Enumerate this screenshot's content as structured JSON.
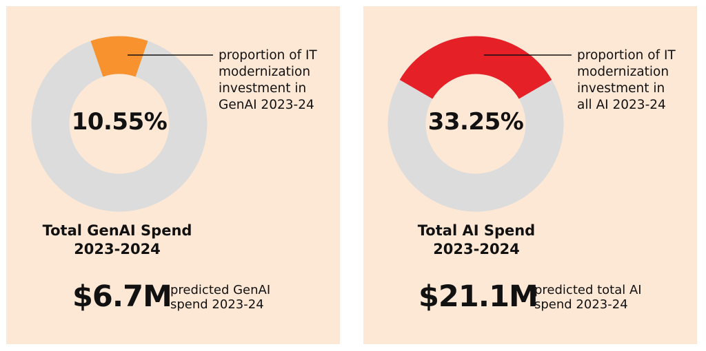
{
  "colors": {
    "background": "#fde8d6",
    "track": "#dcdcdc",
    "genai_accent": "#f7922e",
    "ai_accent": "#e52127",
    "text": "#111111"
  },
  "chart_data": [
    {
      "type": "pie",
      "variant": "donut",
      "values": [
        10.55,
        89.45
      ],
      "highlight_value": 10.55,
      "center_label": "10.55%",
      "callout": [
        "proportion of IT",
        "modernization",
        "investment in",
        "GenAI 2023-24"
      ],
      "highlight_color": "#f7922e",
      "track_color": "#dcdcdc"
    },
    {
      "type": "pie",
      "variant": "donut",
      "values": [
        33.25,
        66.75
      ],
      "highlight_value": 33.25,
      "center_label": "33.25%",
      "callout": [
        "proportion of IT",
        "modernization",
        "investment in",
        "all AI 2023-24"
      ],
      "highlight_color": "#e52127",
      "track_color": "#dcdcdc"
    }
  ],
  "panels": {
    "genai": {
      "title_line1": "Total GenAI Spend",
      "title_line2": "2023-2024",
      "amount": "$6.7M",
      "note_line1": "predicted GenAI",
      "note_line2": "spend 2023-24"
    },
    "ai": {
      "title_line1": "Total AI Spend",
      "title_line2": "2023-2024",
      "amount": "$21.1M",
      "note_line1": "predicted total AI",
      "note_line2": "spend 2023-24"
    }
  }
}
